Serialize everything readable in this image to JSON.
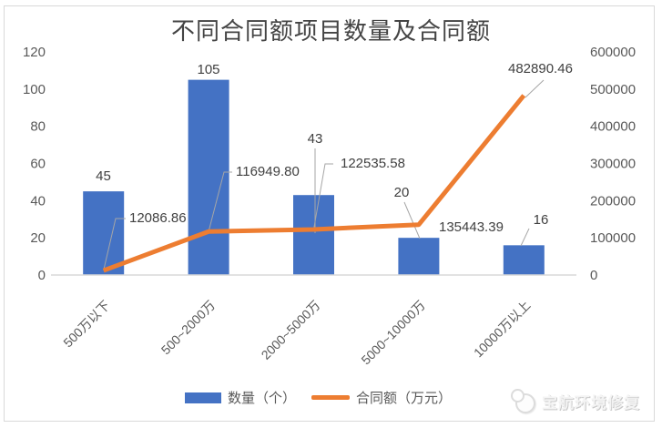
{
  "watermark": {
    "text": "宝航环境修复"
  },
  "colors": {
    "bar": "#4472C4",
    "line": "#ED7D31",
    "axis_text": "#595959",
    "label_text": "#404040",
    "title_text": "#444444",
    "leader_line": "#A6A6A6",
    "axis_line": "#D9D9D9",
    "frame": "#D9D9D9",
    "background": "#FFFFFF"
  },
  "chart_data": {
    "type": "bar",
    "subtype": "combo-bar-line-dual-axis",
    "title": "不同合同额项目数量及合同额",
    "categories": [
      "500万以下",
      "500~2000万",
      "2000~5000万",
      "5000~10000万",
      "10000万以上"
    ],
    "series": [
      {
        "name": "数量（个）",
        "type": "bar",
        "axis": "left",
        "color": "#4472C4",
        "values": [
          45,
          105,
          43,
          20,
          16
        ],
        "labels": [
          "45",
          "105",
          "43",
          "20",
          "16"
        ]
      },
      {
        "name": "合同额（万元）",
        "type": "line",
        "axis": "right",
        "color": "#ED7D31",
        "values": [
          12086.86,
          116949.8,
          122535.58,
          135443.39,
          482890.46
        ],
        "labels": [
          "12086.86",
          "116949.80",
          "122535.58",
          "135443.39",
          "482890.46"
        ]
      }
    ],
    "left_axis": {
      "min": 0,
      "max": 120,
      "ticks": [
        "120",
        "100",
        "80",
        "60",
        "40",
        "20",
        "0"
      ]
    },
    "right_axis": {
      "min": 0,
      "max": 600000,
      "ticks": [
        "600000",
        "500000",
        "400000",
        "300000",
        "200000",
        "100000",
        "0"
      ]
    },
    "grid": false,
    "legend_position": "bottom",
    "xlabel": "",
    "ylabel": ""
  }
}
